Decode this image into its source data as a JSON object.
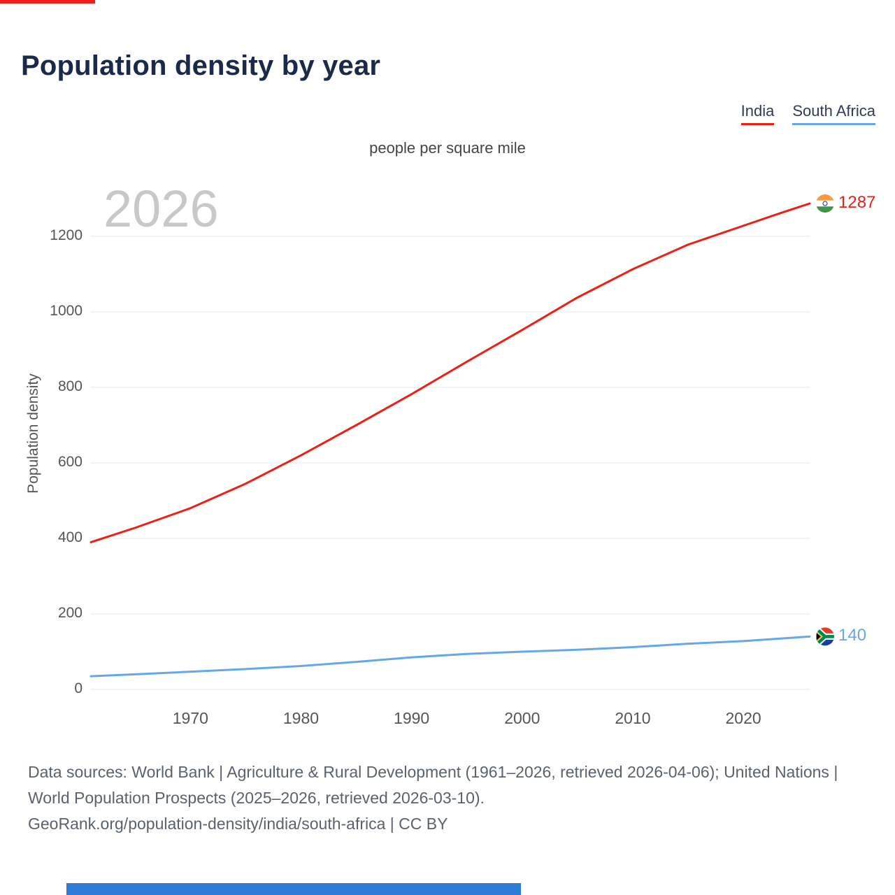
{
  "watermark": "2026",
  "footer": {
    "sources": "Data sources: World Bank | Agriculture & Rural Development (1961–2026, retrieved 2026-04-06); United Nations | World Population Prospects (2025–2026, retrieved 2026-03-10).",
    "attribution": "GeoRank.org/population-density/india/south-africa | CC BY"
  },
  "accents": {
    "top_bar_color": "#ee1f1b",
    "bottom_bar_color": "#2b7bd7"
  },
  "chart_data": {
    "type": "line",
    "title": "Population density by year",
    "subtitle": "people per square mile",
    "xlabel": "",
    "ylabel": "Population density",
    "xlim": [
      1961,
      2026
    ],
    "ylim": [
      0,
      1330
    ],
    "yticks": [
      0,
      200,
      400,
      600,
      800,
      1000,
      1200
    ],
    "xticks": [
      1970,
      1980,
      1990,
      2000,
      2010,
      2020
    ],
    "grid": true,
    "legend_position": "top-right",
    "series": [
      {
        "name": "India",
        "flag": "india",
        "color": "#ed2015",
        "end_label": "1287",
        "x": [
          1961,
          1965,
          1970,
          1975,
          1980,
          1985,
          1990,
          1995,
          2000,
          2005,
          2010,
          2015,
          2020,
          2023,
          2026
        ],
        "values": [
          390,
          428,
          480,
          545,
          620,
          700,
          782,
          868,
          952,
          1038,
          1113,
          1178,
          1228,
          1258,
          1287
        ]
      },
      {
        "name": "South Africa",
        "flag": "south-africa",
        "color": "#66a8e6",
        "end_label": "140",
        "x": [
          1961,
          1965,
          1970,
          1975,
          1980,
          1985,
          1990,
          1995,
          2000,
          2005,
          2010,
          2015,
          2020,
          2023,
          2026
        ],
        "values": [
          35,
          40,
          47,
          54,
          62,
          73,
          85,
          94,
          100,
          105,
          112,
          121,
          128,
          134,
          140
        ]
      }
    ]
  }
}
